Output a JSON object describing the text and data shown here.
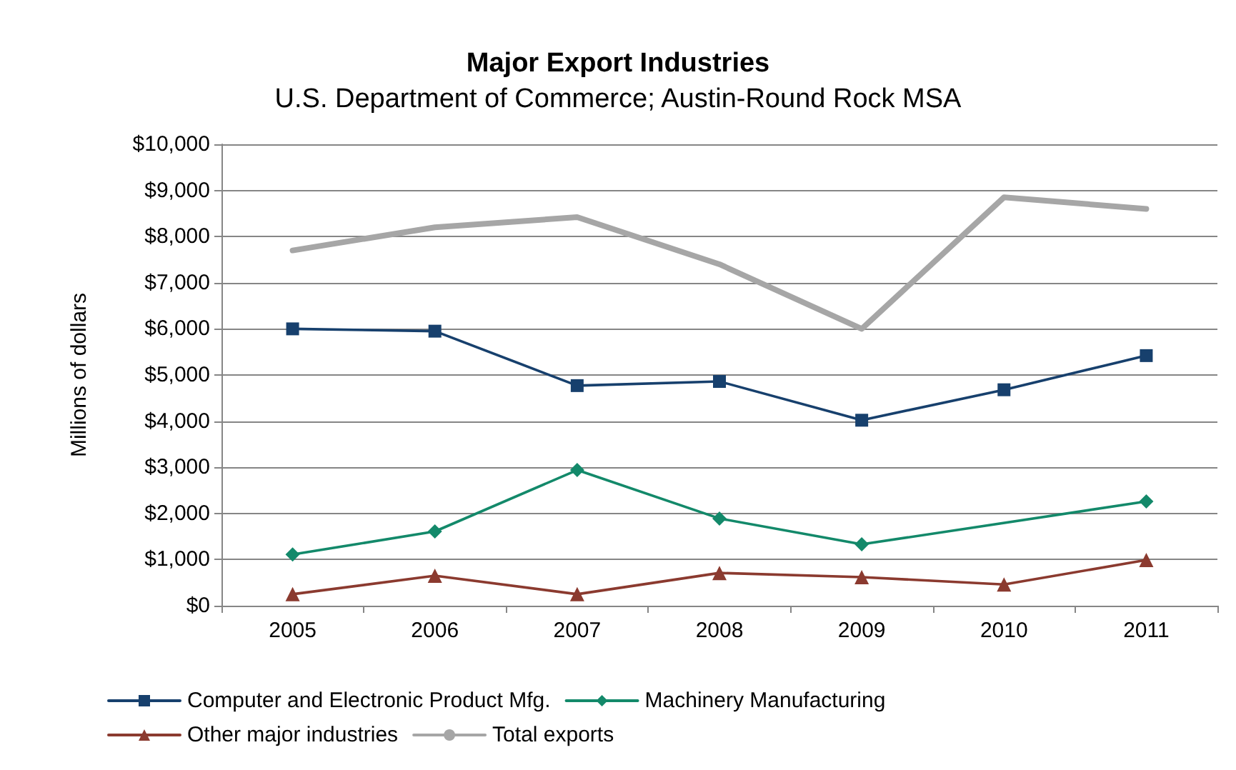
{
  "chart_data": {
    "type": "line",
    "title": "Major Export Industries",
    "subtitle": "U.S. Department of Commerce; Austin-Round Rock MSA",
    "ylabel": "Millions of dollars",
    "categories": [
      "2005",
      "2006",
      "2007",
      "2008",
      "2009",
      "2010",
      "2011"
    ],
    "series": [
      {
        "name": "Computer and Electronic Product Mfg.",
        "color": "#17406d",
        "marker": "square",
        "values": [
          6000,
          5950,
          4770,
          4860,
          4020,
          4680,
          5420
        ]
      },
      {
        "name": "Machinery Manufacturing",
        "color": "#13896a",
        "marker": "diamond",
        "values": [
          1110,
          1610,
          2940,
          1890,
          1330,
          null,
          2260
        ]
      },
      {
        "name": "Other major industries",
        "color": "#8b3a2f",
        "marker": "triangle",
        "values": [
          250,
          650,
          250,
          710,
          620,
          460,
          990
        ]
      },
      {
        "name": "Total exports",
        "color": "#a6a6a6",
        "marker": "none",
        "values": [
          7700,
          8200,
          8420,
          7400,
          6000,
          8850,
          8600
        ]
      }
    ],
    "ylim": [
      0,
      10000
    ],
    "yticks": [
      {
        "value": 0,
        "label": "$0"
      },
      {
        "value": 1000,
        "label": "$1,000"
      },
      {
        "value": 2000,
        "label": "$2,000"
      },
      {
        "value": 3000,
        "label": "$3,000"
      },
      {
        "value": 4000,
        "label": "$4,000"
      },
      {
        "value": 5000,
        "label": "$5,000"
      },
      {
        "value": 6000,
        "label": "$6,000"
      },
      {
        "value": 7000,
        "label": "$7,000"
      },
      {
        "value": 8000,
        "label": "$8,000"
      },
      {
        "value": 9000,
        "label": "$9,000"
      },
      {
        "value": 10000,
        "label": "$10,000"
      }
    ],
    "grid": "y",
    "legend": "bottom"
  }
}
